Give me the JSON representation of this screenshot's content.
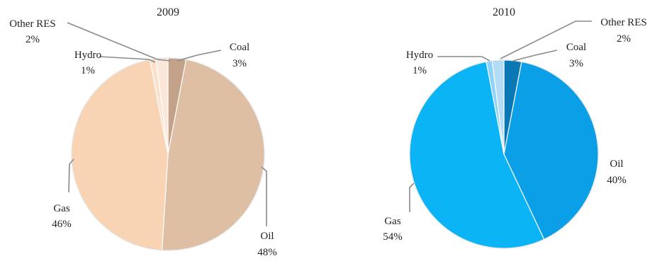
{
  "chart_data": [
    {
      "type": "pie",
      "title": "2009",
      "slices": [
        {
          "label": "Coal",
          "value": 3,
          "value_label": "3%",
          "color": "#c4a189"
        },
        {
          "label": "Oil",
          "value": 48,
          "value_label": "48%",
          "color": "#dfbfa3"
        },
        {
          "label": "Gas",
          "value": 46,
          "value_label": "46%",
          "color": "#f8d4b4"
        },
        {
          "label": "Hydro",
          "value": 1,
          "value_label": "1%",
          "color": "#fbe0cc"
        },
        {
          "label": "Other RES",
          "value": 2,
          "value_label": "2%",
          "color": "#fbe6da"
        }
      ],
      "start": "12 o'clock",
      "direction": "clockwise"
    },
    {
      "type": "pie",
      "title": "2010",
      "slices": [
        {
          "label": "Coal",
          "value": 3,
          "value_label": "3%",
          "color": "#0a78b4"
        },
        {
          "label": "Oil",
          "value": 40,
          "value_label": "40%",
          "color": "#0a9fe6"
        },
        {
          "label": "Gas",
          "value": 54,
          "value_label": "54%",
          "color": "#0ab4f5"
        },
        {
          "label": "Hydro",
          "value": 1,
          "value_label": "1%",
          "color": "#8cd2fa"
        },
        {
          "label": "Other RES",
          "value": 2,
          "value_label": "2%",
          "color": "#b4dcf5"
        }
      ],
      "start": "12 o'clock",
      "direction": "clockwise"
    }
  ]
}
